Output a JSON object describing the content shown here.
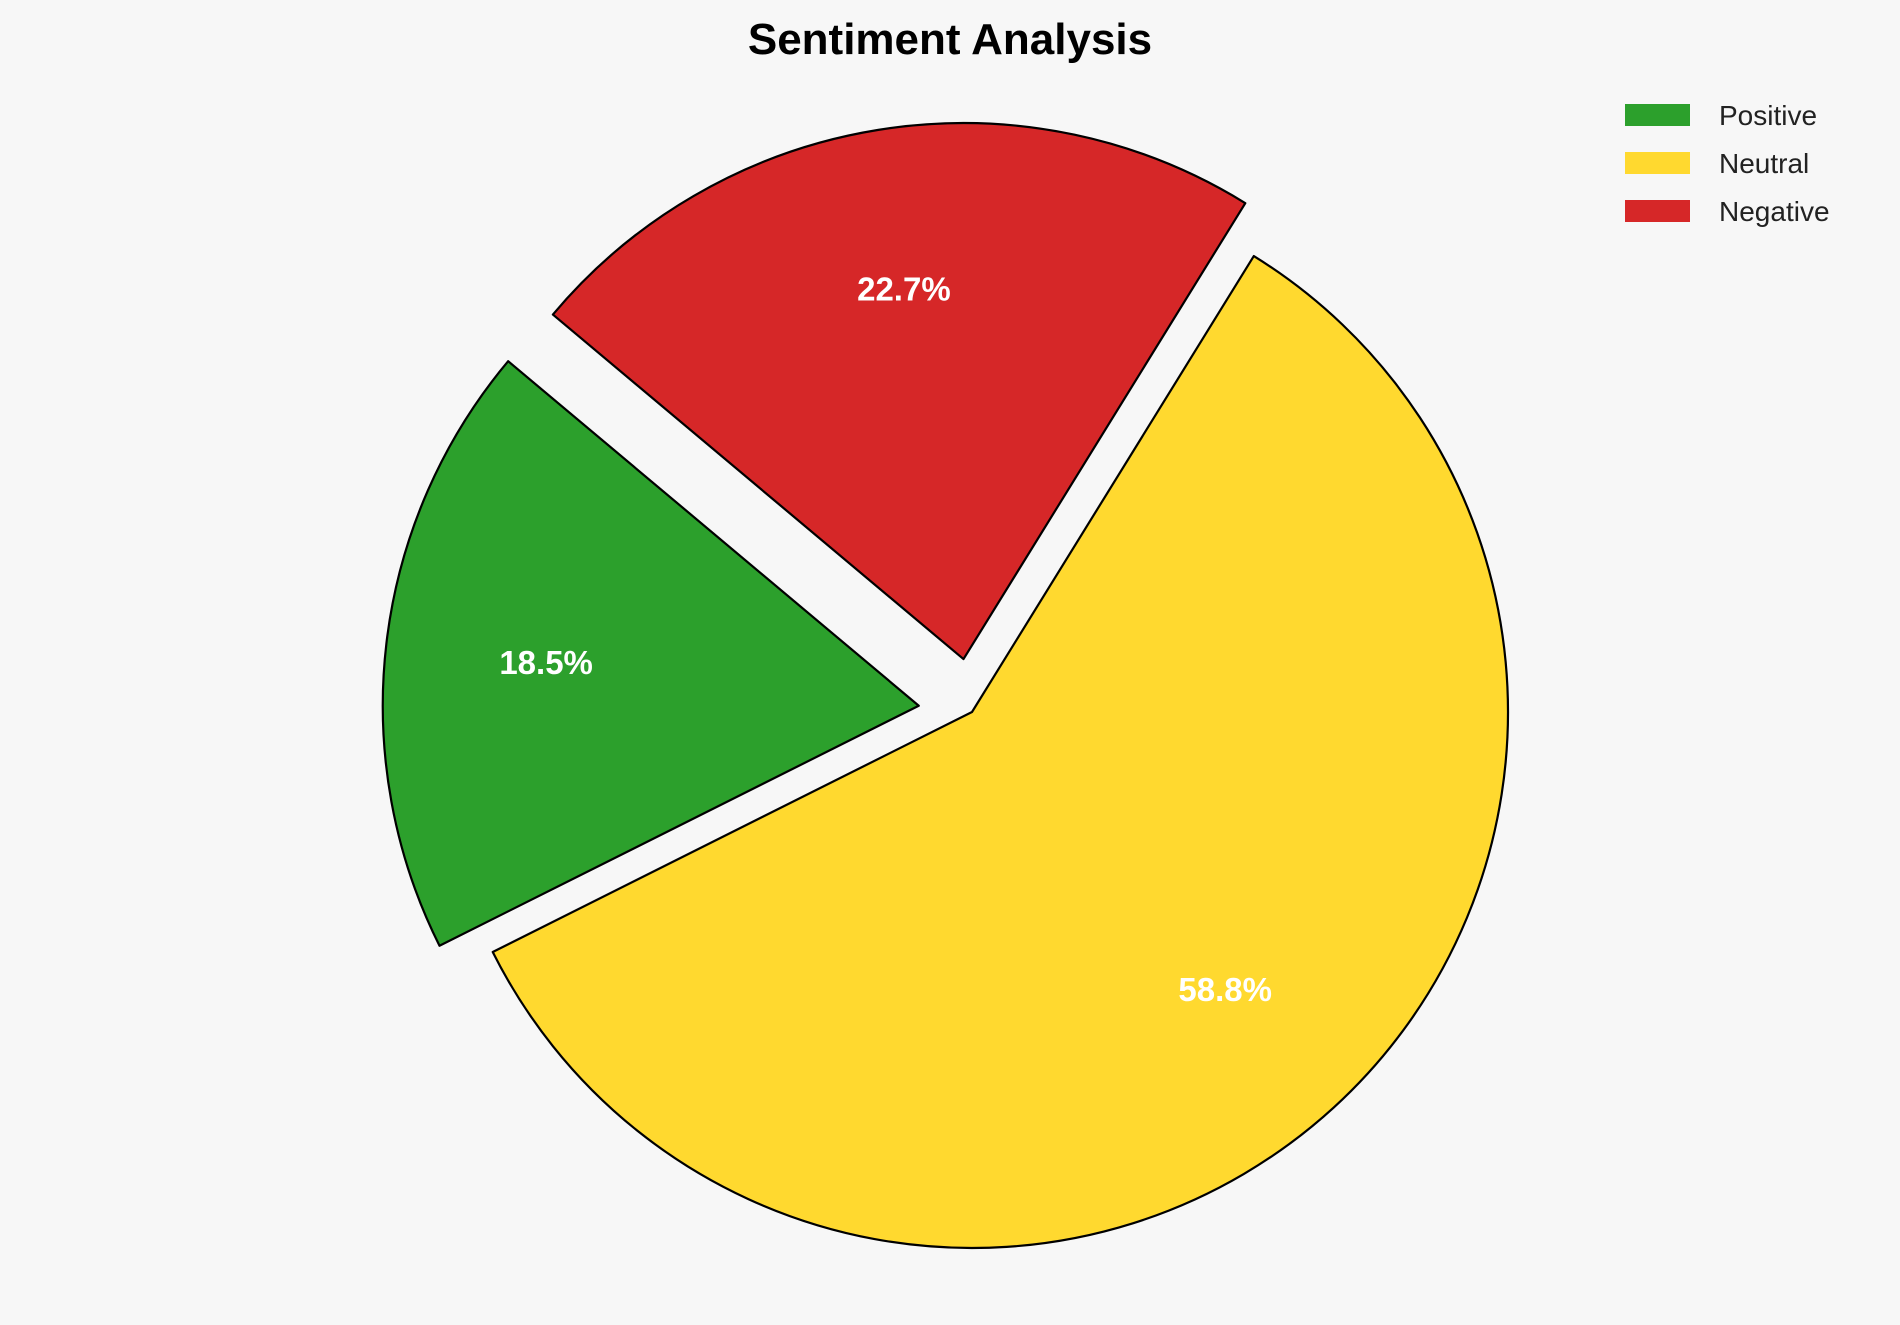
{
  "chart_data": {
    "type": "pie",
    "title": "Sentiment Analysis",
    "categories": [
      "Positive",
      "Neutral",
      "Negative"
    ],
    "values": [
      18.5,
      58.8,
      22.7
    ],
    "labels": [
      "18.5%",
      "58.8%",
      "22.7%"
    ],
    "colors": [
      "#2ca02c",
      "#ffd92f",
      "#d62728"
    ],
    "explode": [
      0.1,
      0,
      0.1
    ],
    "start_angle": 140,
    "legend": {
      "placement": "top-right",
      "entries": [
        "Positive",
        "Neutral",
        "Negative"
      ]
    }
  }
}
